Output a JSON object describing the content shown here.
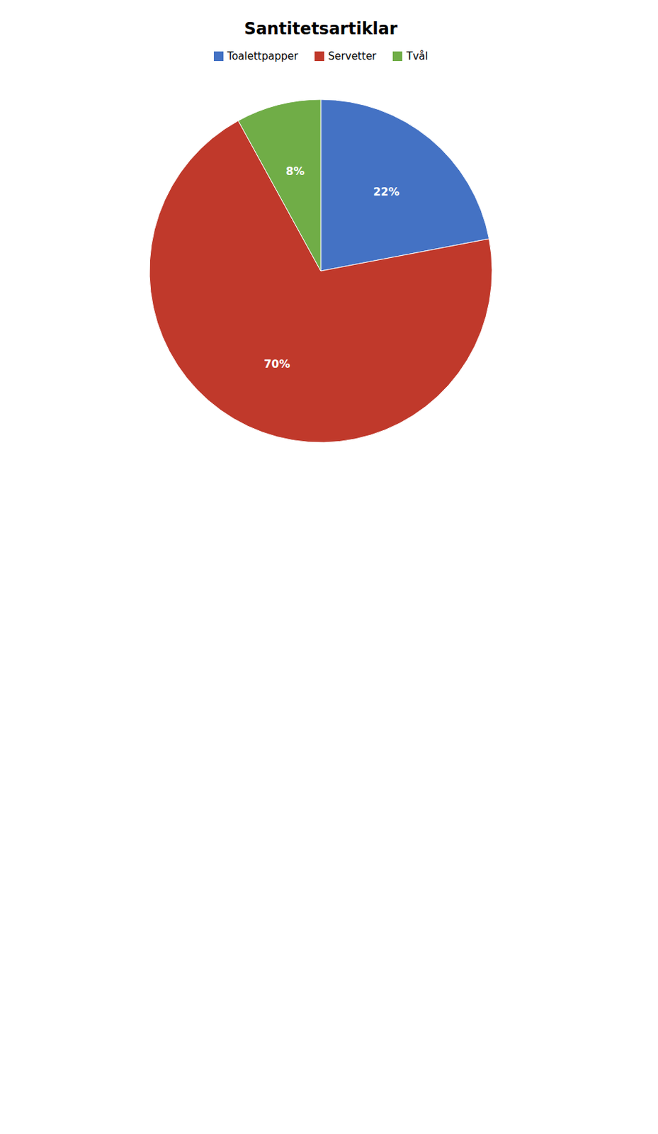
{
  "chart_data": {
    "type": "pie",
    "title": "Santitetsartiklar",
    "categories": [
      "Toalettpapper",
      "Servetter",
      "Tvål"
    ],
    "values": [
      22,
      70,
      8
    ],
    "value_labels": [
      "22%",
      "70%",
      "8%"
    ],
    "colors": [
      "#4472C4",
      "#C0392B",
      "#70AD47"
    ],
    "data_labels": true,
    "legend": "top"
  }
}
